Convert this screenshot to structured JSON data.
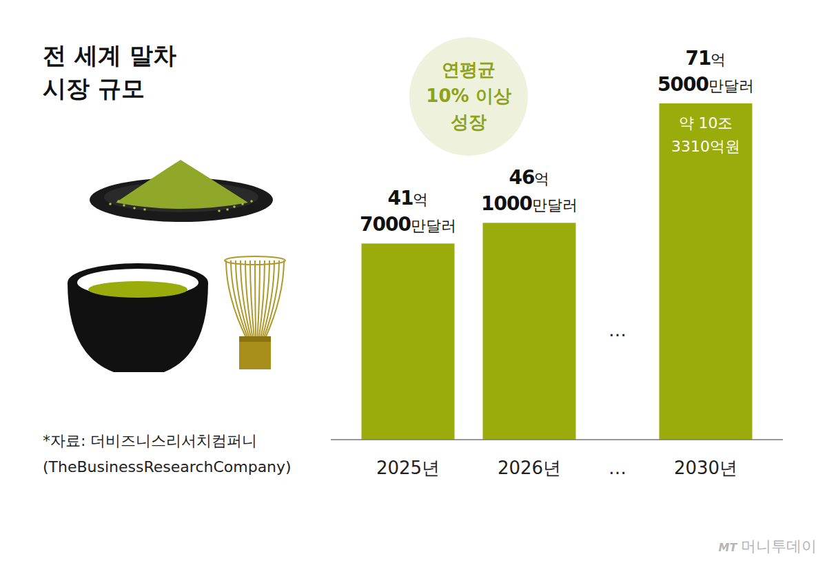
{
  "chart_data": {
    "type": "bar",
    "title": "전 세계 말차\n시장 규모",
    "categories": [
      "2025년",
      "2026년",
      "…",
      "2030년"
    ],
    "values": [
      4170000000,
      4610000000,
      null,
      7150000000
    ],
    "value_labels": [
      "41억 7000만달러",
      "46억 1000만달러",
      null,
      "71억 5000만달러"
    ],
    "data_labels": true,
    "color": "#99ac0c",
    "ylim": [
      0,
      7150000000
    ],
    "tick_labels": "x",
    "grid": false,
    "annotations": [
      "연평균\n10% 이상\n성장",
      "약 10조\n3310억원",
      "…"
    ],
    "source": "*자료: 더비즈니스리서치컴퍼니\n(TheBusinessResearchCompany)",
    "credit": "MT 머니투데이"
  }
}
